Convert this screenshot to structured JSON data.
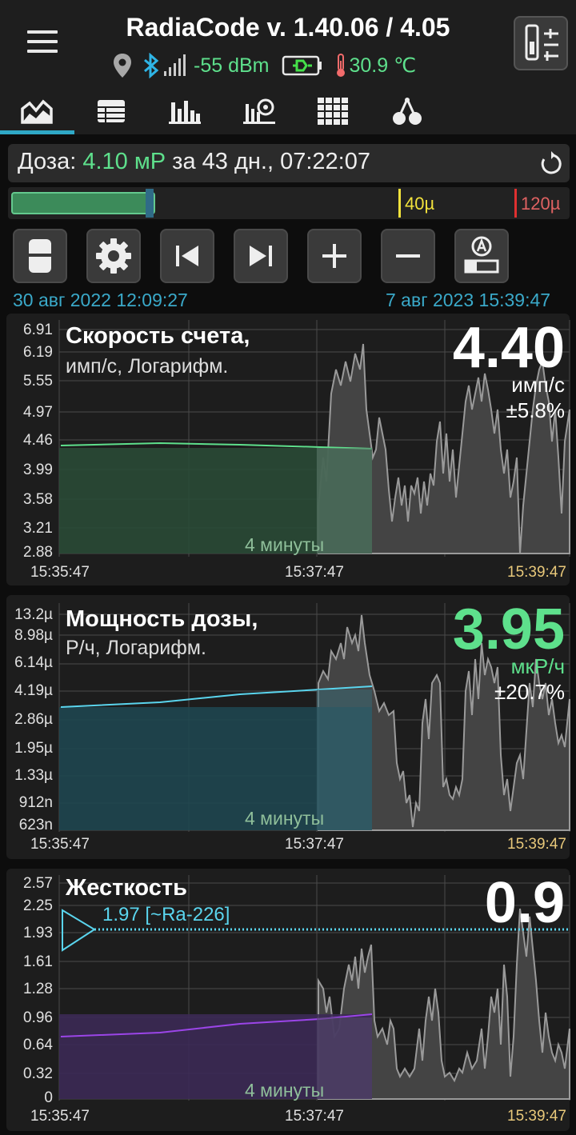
{
  "header": {
    "title": "RadiaCode v. 1.40.06 / 4.05",
    "signal": "-55 dBm",
    "temperature": "30.9 ℃"
  },
  "tabs": [
    "chart-tab",
    "table-tab",
    "histogram-tab",
    "spectrum-tab",
    "grid-tab",
    "radiation-tab"
  ],
  "dose": {
    "label": "Доза:",
    "value": "4.10 мР",
    "period": "за 43 дн., 07:22:07",
    "marker1": "40µ",
    "marker2": "120µ"
  },
  "dates": {
    "start": "30 авг 2022 12:09:27",
    "end": "7 авг 2023 15:39:47"
  },
  "colors": {
    "green": "#5ee08c",
    "cyan": "#5ad5ee",
    "purple": "#9b45e8"
  },
  "panels": [
    {
      "title": "Скорость счета,",
      "subtitle": "имп/с, Логарифм.",
      "value": "4.40",
      "unit": "имп/с",
      "error": "±5.8%",
      "yticks": [
        "6.91",
        "6.19",
        "5.55",
        "4.97",
        "4.46",
        "3.99",
        "3.58",
        "3.21",
        "2.88"
      ],
      "window": "4 минуты",
      "xticks": [
        "15:35:47",
        "15:37:47",
        "15:39:47"
      ]
    },
    {
      "title": "Мощность дозы,",
      "subtitle": "Р/ч, Логарифм.",
      "value": "3.95",
      "unit": "мкР/ч",
      "error": "±20.7%",
      "yticks": [
        "13.2µ",
        "8.98µ",
        "6.14µ",
        "4.19µ",
        "2.86µ",
        "1.95µ",
        "1.33µ",
        "912n",
        "623n"
      ],
      "window": "4 минуты",
      "xticks": [
        "15:35:47",
        "15:37:47",
        "15:39:47"
      ]
    },
    {
      "title": "Жесткость",
      "subtitle": "",
      "value": "0.9",
      "unit": "",
      "error": "",
      "reference": "1.97 [~Ra-226]",
      "yticks": [
        "2.57",
        "2.25",
        "1.93",
        "1.61",
        "1.28",
        "0.96",
        "0.64",
        "0.32",
        "0"
      ],
      "window": "4 минуты",
      "xticks": [
        "15:35:47",
        "15:37:47",
        "15:39:47"
      ]
    }
  ]
}
